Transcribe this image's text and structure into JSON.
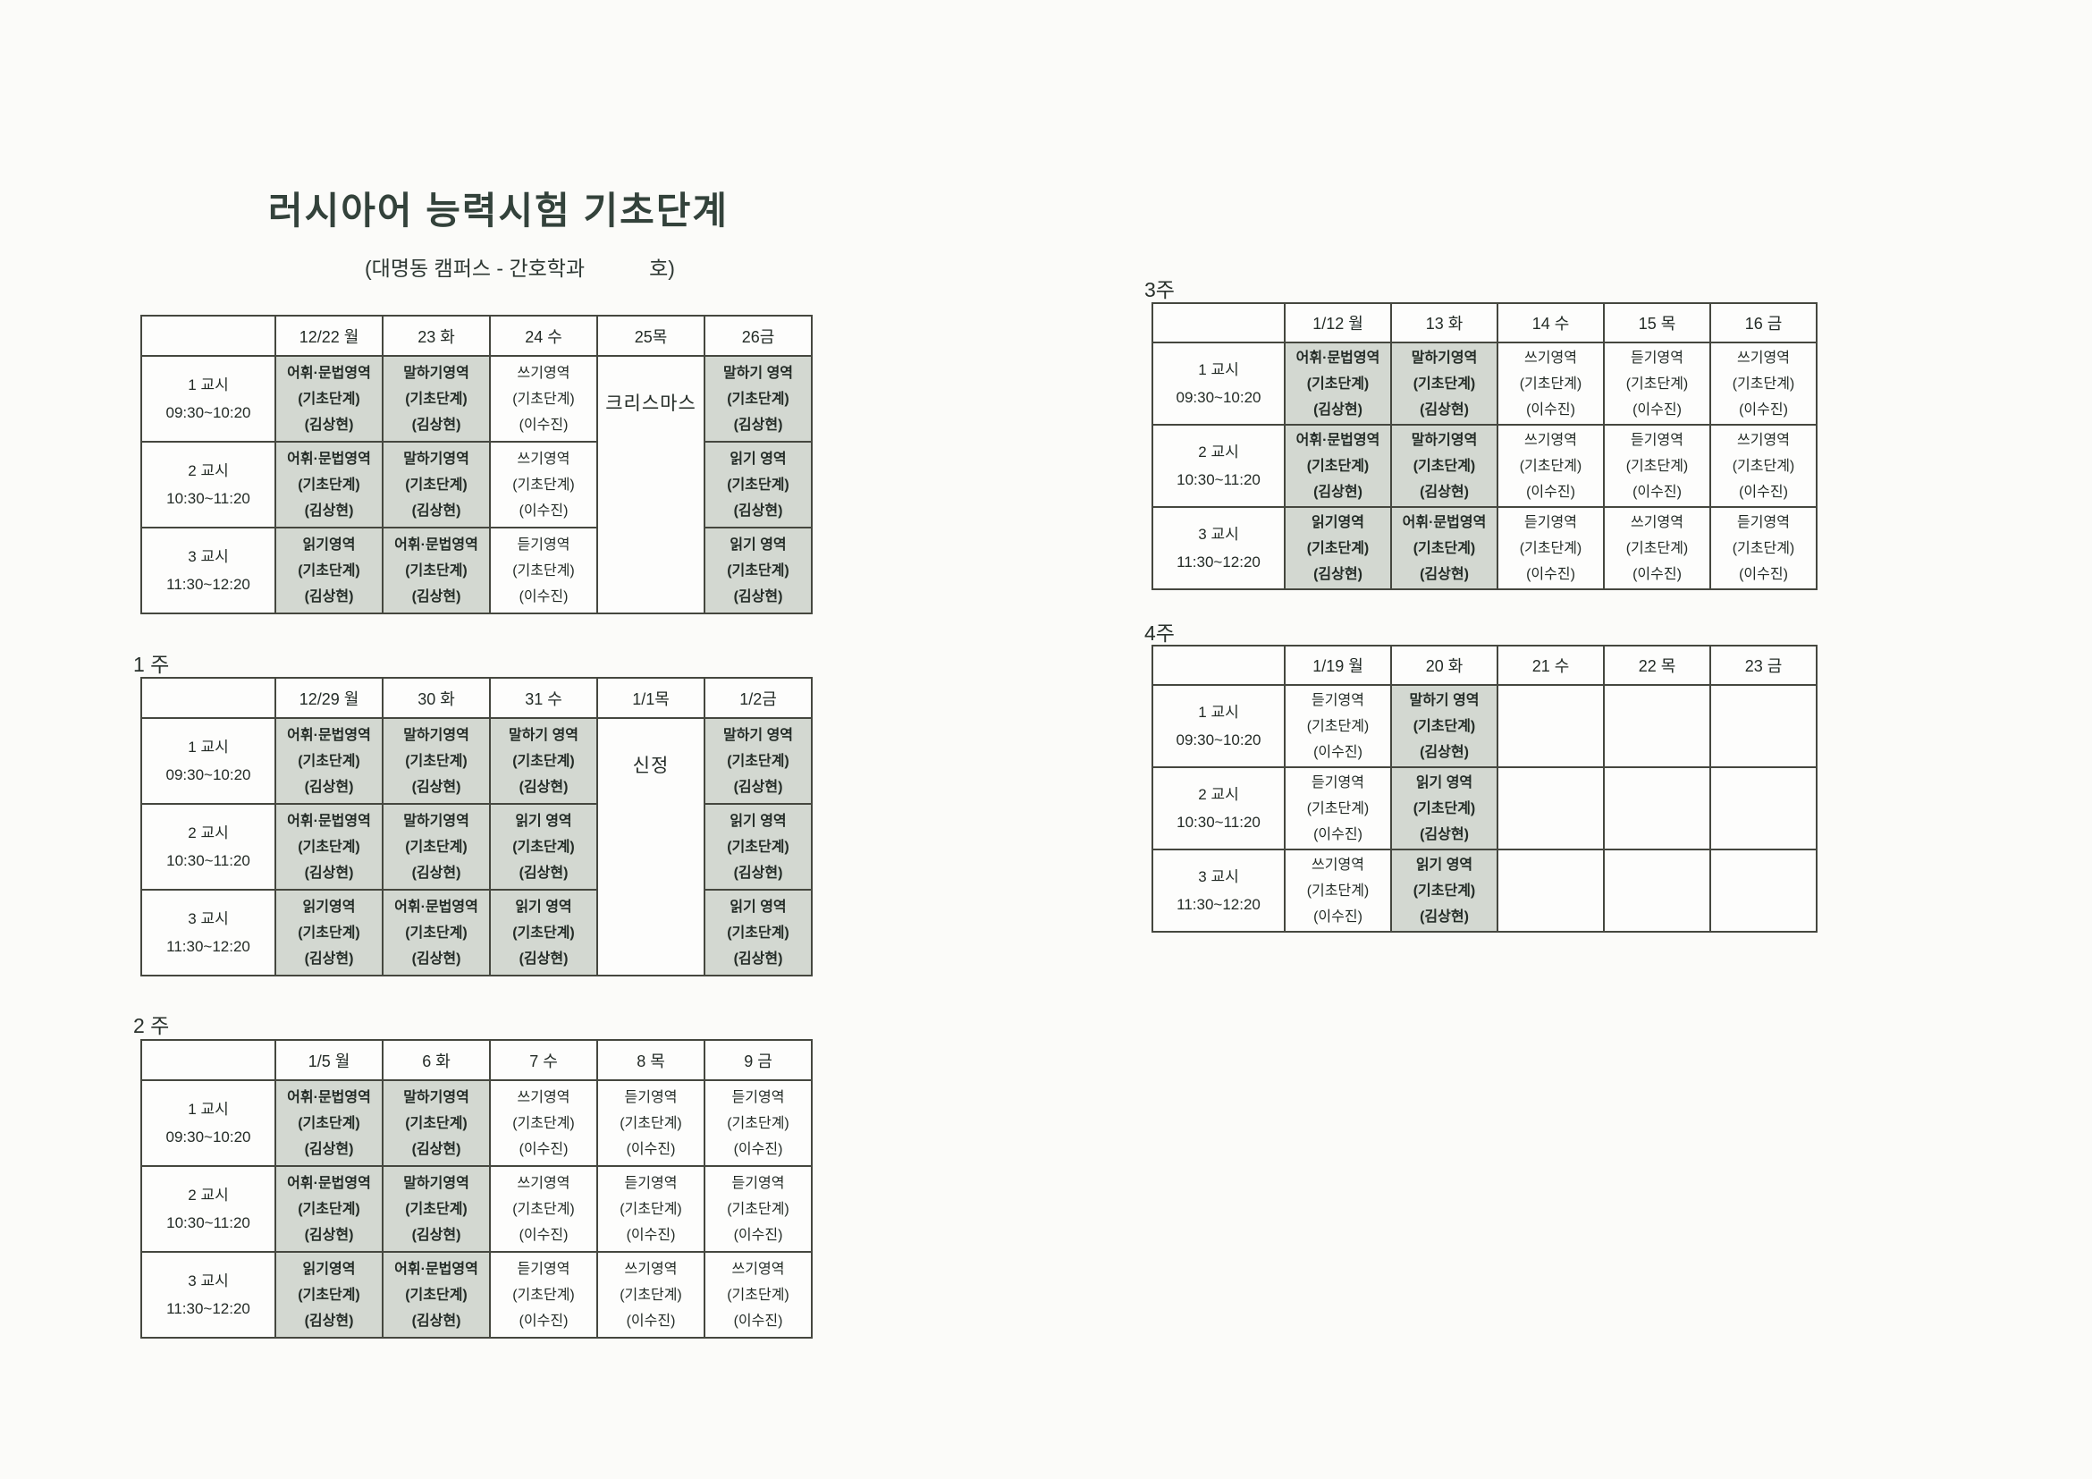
{
  "doc": {
    "title": "러시아어 능력시험 기초단계",
    "subtitle_prefix": "(대명동 캠퍼스 - 간호학과",
    "subtitle_suffix": "호)"
  },
  "periods": [
    {
      "name": "1 교시",
      "time": "09:30~10:20"
    },
    {
      "name": "2 교시",
      "time": "10:30~11:20"
    },
    {
      "name": "3 교시",
      "time": "11:30~12:20"
    }
  ],
  "colors": {
    "shaded_cell": "#d3d8d1",
    "border": "#45473f",
    "text": "#232b26",
    "title": "#33423b",
    "paper": "#fbfbf9"
  },
  "tables": [
    {
      "label": "",
      "days": [
        "12/22 월",
        "23 화",
        "24 수",
        "25목",
        "26금"
      ],
      "holiday": {
        "col": 3,
        "text": "크리스마스"
      },
      "rows": [
        [
          {
            "subject": "어휘·문법영역",
            "level": "(기초단계)",
            "teacher": "(김상현)",
            "shaded": true
          },
          {
            "subject": "말하기영역",
            "level": "(기초단계)",
            "teacher": "(김상현)",
            "shaded": true
          },
          {
            "subject": "쓰기영역",
            "level": "(기초단계)",
            "teacher": "(이수진)",
            "shaded": false
          },
          null,
          {
            "subject": "말하기 영역",
            "level": "(기초단계)",
            "teacher": "(김상현)",
            "shaded": true
          }
        ],
        [
          {
            "subject": "어휘·문법영역",
            "level": "(기초단계)",
            "teacher": "(김상현)",
            "shaded": true
          },
          {
            "subject": "말하기영역",
            "level": "(기초단계)",
            "teacher": "(김상현)",
            "shaded": true
          },
          {
            "subject": "쓰기영역",
            "level": "(기초단계)",
            "teacher": "(이수진)",
            "shaded": false
          },
          null,
          {
            "subject": "읽기 영역",
            "level": "(기초단계)",
            "teacher": "(김상현)",
            "shaded": true
          }
        ],
        [
          {
            "subject": "읽기영역",
            "level": "(기초단계)",
            "teacher": "(김상현)",
            "shaded": true
          },
          {
            "subject": "어휘·문법영역",
            "level": "(기초단계)",
            "teacher": "(김상현)",
            "shaded": true
          },
          {
            "subject": "듣기영역",
            "level": "(기초단계)",
            "teacher": "(이수진)",
            "shaded": false
          },
          null,
          {
            "subject": "읽기 영역",
            "level": "(기초단계)",
            "teacher": "(김상현)",
            "shaded": true
          }
        ]
      ]
    },
    {
      "label": "1 주",
      "days": [
        "12/29 월",
        "30 화",
        "31 수",
        "1/1목",
        "1/2금"
      ],
      "holiday": {
        "col": 3,
        "text": "신정"
      },
      "rows": [
        [
          {
            "subject": "어휘·문법영역",
            "level": "(기초단계)",
            "teacher": "(김상현)",
            "shaded": true
          },
          {
            "subject": "말하기영역",
            "level": "(기초단계)",
            "teacher": "(김상현)",
            "shaded": true
          },
          {
            "subject": "말하기 영역",
            "level": "(기초단계)",
            "teacher": "(김상현)",
            "shaded": true
          },
          null,
          {
            "subject": "말하기 영역",
            "level": "(기초단계)",
            "teacher": "(김상현)",
            "shaded": true
          }
        ],
        [
          {
            "subject": "어휘·문법영역",
            "level": "(기초단계)",
            "teacher": "(김상현)",
            "shaded": true
          },
          {
            "subject": "말하기영역",
            "level": "(기초단계)",
            "teacher": "(김상현)",
            "shaded": true
          },
          {
            "subject": "읽기 영역",
            "level": "(기초단계)",
            "teacher": "(김상현)",
            "shaded": true
          },
          null,
          {
            "subject": "읽기 영역",
            "level": "(기초단계)",
            "teacher": "(김상현)",
            "shaded": true
          }
        ],
        [
          {
            "subject": "읽기영역",
            "level": "(기초단계)",
            "teacher": "(김상현)",
            "shaded": true
          },
          {
            "subject": "어휘·문법영역",
            "level": "(기초단계)",
            "teacher": "(김상현)",
            "shaded": true
          },
          {
            "subject": "읽기 영역",
            "level": "(기초단계)",
            "teacher": "(김상현)",
            "shaded": true
          },
          null,
          {
            "subject": "읽기 영역",
            "level": "(기초단계)",
            "teacher": "(김상현)",
            "shaded": true
          }
        ]
      ]
    },
    {
      "label": "2 주",
      "days": [
        "1/5 월",
        "6 화",
        "7 수",
        "8 목",
        "9 금"
      ],
      "holiday": null,
      "rows": [
        [
          {
            "subject": "어휘·문법영역",
            "level": "(기초단계)",
            "teacher": "(김상현)",
            "shaded": true
          },
          {
            "subject": "말하기영역",
            "level": "(기초단계)",
            "teacher": "(김상현)",
            "shaded": true
          },
          {
            "subject": "쓰기영역",
            "level": "(기초단계)",
            "teacher": "(이수진)",
            "shaded": false
          },
          {
            "subject": "듣기영역",
            "level": "(기초단계)",
            "teacher": "(이수진)",
            "shaded": false
          },
          {
            "subject": "듣기영역",
            "level": "(기초단계)",
            "teacher": "(이수진)",
            "shaded": false
          }
        ],
        [
          {
            "subject": "어휘·문법영역",
            "level": "(기초단계)",
            "teacher": "(김상현)",
            "shaded": true
          },
          {
            "subject": "말하기영역",
            "level": "(기초단계)",
            "teacher": "(김상현)",
            "shaded": true
          },
          {
            "subject": "쓰기영역",
            "level": "(기초단계)",
            "teacher": "(이수진)",
            "shaded": false
          },
          {
            "subject": "듣기영역",
            "level": "(기초단계)",
            "teacher": "(이수진)",
            "shaded": false
          },
          {
            "subject": "듣기영역",
            "level": "(기초단계)",
            "teacher": "(이수진)",
            "shaded": false
          }
        ],
        [
          {
            "subject": "읽기영역",
            "level": "(기초단계)",
            "teacher": "(김상현)",
            "shaded": true
          },
          {
            "subject": "어휘·문법영역",
            "level": "(기초단계)",
            "teacher": "(김상현)",
            "shaded": true
          },
          {
            "subject": "듣기영역",
            "level": "(기초단계)",
            "teacher": "(이수진)",
            "shaded": false
          },
          {
            "subject": "쓰기영역",
            "level": "(기초단계)",
            "teacher": "(이수진)",
            "shaded": false
          },
          {
            "subject": "쓰기영역",
            "level": "(기초단계)",
            "teacher": "(이수진)",
            "shaded": false
          }
        ]
      ]
    },
    {
      "label": "3주",
      "days": [
        "1/12 월",
        "13 화",
        "14 수",
        "15 목",
        "16 금"
      ],
      "holiday": null,
      "rows": [
        [
          {
            "subject": "어휘·문법영역",
            "level": "(기초단계)",
            "teacher": "(김상현)",
            "shaded": true
          },
          {
            "subject": "말하기영역",
            "level": "(기초단계)",
            "teacher": "(김상현)",
            "shaded": true
          },
          {
            "subject": "쓰기영역",
            "level": "(기초단계)",
            "teacher": "(이수진)",
            "shaded": false
          },
          {
            "subject": "듣기영역",
            "level": "(기초단계)",
            "teacher": "(이수진)",
            "shaded": false
          },
          {
            "subject": "쓰기영역",
            "level": "(기초단계)",
            "teacher": "(이수진)",
            "shaded": false
          }
        ],
        [
          {
            "subject": "어휘·문법영역",
            "level": "(기초단계)",
            "teacher": "(김상현)",
            "shaded": true
          },
          {
            "subject": "말하기영역",
            "level": "(기초단계)",
            "teacher": "(김상현)",
            "shaded": true
          },
          {
            "subject": "쓰기영역",
            "level": "(기초단계)",
            "teacher": "(이수진)",
            "shaded": false
          },
          {
            "subject": "듣기영역",
            "level": "(기초단계)",
            "teacher": "(이수진)",
            "shaded": false
          },
          {
            "subject": "쓰기영역",
            "level": "(기초단계)",
            "teacher": "(이수진)",
            "shaded": false
          }
        ],
        [
          {
            "subject": "읽기영역",
            "level": "(기초단계)",
            "teacher": "(김상현)",
            "shaded": true
          },
          {
            "subject": "어휘·문법영역",
            "level": "(기초단계)",
            "teacher": "(김상현)",
            "shaded": true
          },
          {
            "subject": "듣기영역",
            "level": "(기초단계)",
            "teacher": "(이수진)",
            "shaded": false
          },
          {
            "subject": "쓰기영역",
            "level": "(기초단계)",
            "teacher": "(이수진)",
            "shaded": false
          },
          {
            "subject": "듣기영역",
            "level": "(기초단계)",
            "teacher": "(이수진)",
            "shaded": false
          }
        ]
      ]
    },
    {
      "label": "4주",
      "days": [
        "1/19 월",
        "20 화",
        "21 수",
        "22 목",
        "23 금"
      ],
      "holiday": null,
      "rows": [
        [
          {
            "subject": "듣기영역",
            "level": "(기초단계)",
            "teacher": "(이수진)",
            "shaded": false
          },
          {
            "subject": "말하기 영역",
            "level": "(기초단계)",
            "teacher": "(김상현)",
            "shaded": true
          },
          null,
          null,
          null
        ],
        [
          {
            "subject": "듣기영역",
            "level": "(기초단계)",
            "teacher": "(이수진)",
            "shaded": false
          },
          {
            "subject": "읽기 영역",
            "level": "(기초단계)",
            "teacher": "(김상현)",
            "shaded": true
          },
          null,
          null,
          null
        ],
        [
          {
            "subject": "쓰기영역",
            "level": "(기초단계)",
            "teacher": "(이수진)",
            "shaded": false
          },
          {
            "subject": "읽기 영역",
            "level": "(기초단계)",
            "teacher": "(김상현)",
            "shaded": true
          },
          null,
          null,
          null
        ]
      ]
    }
  ]
}
